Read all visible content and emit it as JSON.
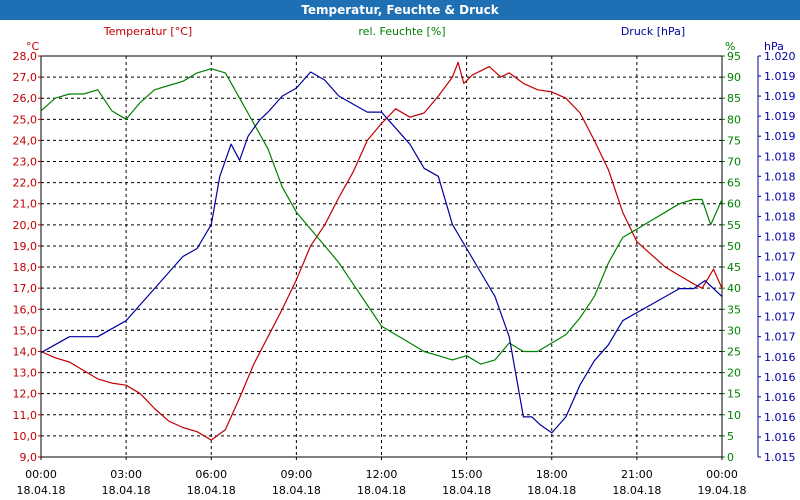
{
  "title": "Temperatur, Feuchte & Druck",
  "colors": {
    "title_bg": "#1f6fb5",
    "temperature": "#c00000",
    "humidity": "#008000",
    "pressure": "#0000a0",
    "grid": "#000000"
  },
  "chart_data": {
    "type": "line",
    "grid": true,
    "x_ticks": [
      {
        "time": "00:00",
        "date": "18.04.18"
      },
      {
        "time": "03:00",
        "date": "18.04.18"
      },
      {
        "time": "06:00",
        "date": "18.04.18"
      },
      {
        "time": "09:00",
        "date": "18.04.18"
      },
      {
        "time": "12:00",
        "date": "18.04.18"
      },
      {
        "time": "15:00",
        "date": "18.04.18"
      },
      {
        "time": "18:00",
        "date": "18.04.18"
      },
      {
        "time": "21:00",
        "date": "18.04.18"
      },
      {
        "time": "00:00",
        "date": "19.04.18"
      }
    ],
    "x_unit_hours": [
      0,
      24
    ],
    "axes": {
      "temperature": {
        "label": "Temperatur [°C]",
        "unit": "°C",
        "ylim": [
          9.0,
          28.0
        ],
        "ticks": [
          "9,0",
          "10,0",
          "11,0",
          "12,0",
          "13,0",
          "14,0",
          "15,0",
          "16,0",
          "17,0",
          "18,0",
          "19,0",
          "20,0",
          "21,0",
          "22,0",
          "23,0",
          "24,0",
          "25,0",
          "26,0",
          "27,0",
          "28,0"
        ]
      },
      "humidity": {
        "label": "rel. Feuchte [%]",
        "unit": "%",
        "ylim": [
          0,
          95
        ],
        "ticks": [
          "0",
          "5",
          "10",
          "15",
          "20",
          "25",
          "30",
          "35",
          "40",
          "45",
          "50",
          "55",
          "60",
          "65",
          "70",
          "75",
          "80",
          "85",
          "90",
          "95"
        ]
      },
      "pressure": {
        "label": "Druck [hPa]",
        "unit": "hPa",
        "ylim": [
          1015.0,
          1020.0
        ],
        "ticks": [
          "1.015",
          "1.016",
          "1.016",
          "1.016",
          "1.016",
          "1.016",
          "1.017",
          "1.017",
          "1.017",
          "1.017",
          "1.017",
          "1.018",
          "1.018",
          "1.018",
          "1.018",
          "1.018",
          "1.019",
          "1.019",
          "1.019",
          "1.019",
          "1.020"
        ]
      }
    },
    "series": [
      {
        "name": "Temperatur [°C]",
        "axis": "temperature",
        "points": [
          [
            0,
            14.0
          ],
          [
            0.5,
            13.7
          ],
          [
            1,
            13.5
          ],
          [
            1.5,
            13.1
          ],
          [
            2,
            12.7
          ],
          [
            2.5,
            12.5
          ],
          [
            3,
            12.4
          ],
          [
            3.5,
            12.0
          ],
          [
            4,
            11.3
          ],
          [
            4.5,
            10.7
          ],
          [
            5,
            10.4
          ],
          [
            5.5,
            10.2
          ],
          [
            6,
            9.8
          ],
          [
            6.5,
            10.3
          ],
          [
            7,
            11.8
          ],
          [
            7.5,
            13.4
          ],
          [
            8,
            14.7
          ],
          [
            8.5,
            16.0
          ],
          [
            9,
            17.4
          ],
          [
            9.5,
            19.0
          ],
          [
            10,
            20.0
          ],
          [
            10.5,
            21.3
          ],
          [
            11,
            22.5
          ],
          [
            11.5,
            24.0
          ],
          [
            12,
            24.8
          ],
          [
            12.5,
            25.5
          ],
          [
            13,
            25.1
          ],
          [
            13.5,
            25.3
          ],
          [
            14,
            26.1
          ],
          [
            14.5,
            27.0
          ],
          [
            14.7,
            27.7
          ],
          [
            14.9,
            26.7
          ],
          [
            15.2,
            27.1
          ],
          [
            15.5,
            27.3
          ],
          [
            15.8,
            27.5
          ],
          [
            16.2,
            27.0
          ],
          [
            16.5,
            27.2
          ],
          [
            17,
            26.7
          ],
          [
            17.5,
            26.4
          ],
          [
            18,
            26.3
          ],
          [
            18.5,
            26.0
          ],
          [
            19,
            25.3
          ],
          [
            19.5,
            24.0
          ],
          [
            20,
            22.6
          ],
          [
            20.5,
            20.6
          ],
          [
            21,
            19.2
          ],
          [
            21.5,
            18.6
          ],
          [
            22,
            18.0
          ],
          [
            22.5,
            17.6
          ],
          [
            23,
            17.2
          ],
          [
            23.3,
            17.0
          ],
          [
            23.7,
            17.9
          ],
          [
            24,
            17.0
          ]
        ]
      },
      {
        "name": "rel. Feuchte [%]",
        "axis": "humidity",
        "points": [
          [
            0,
            82
          ],
          [
            0.5,
            85
          ],
          [
            1,
            86
          ],
          [
            1.5,
            86
          ],
          [
            2,
            87
          ],
          [
            2.5,
            82
          ],
          [
            3,
            80
          ],
          [
            3.5,
            84
          ],
          [
            4,
            87
          ],
          [
            4.5,
            88
          ],
          [
            5,
            89
          ],
          [
            5.5,
            91
          ],
          [
            6,
            92
          ],
          [
            6.5,
            91
          ],
          [
            7,
            85
          ],
          [
            7.5,
            79
          ],
          [
            8,
            73
          ],
          [
            8.5,
            64
          ],
          [
            9,
            58
          ],
          [
            9.5,
            54
          ],
          [
            10,
            50
          ],
          [
            10.5,
            46
          ],
          [
            11,
            41
          ],
          [
            11.5,
            36
          ],
          [
            12,
            31
          ],
          [
            12.5,
            29
          ],
          [
            13,
            27
          ],
          [
            13.5,
            25
          ],
          [
            14,
            24
          ],
          [
            14.5,
            23
          ],
          [
            15,
            24
          ],
          [
            15.5,
            22
          ],
          [
            16,
            23
          ],
          [
            16.5,
            27
          ],
          [
            17,
            25
          ],
          [
            17.5,
            25
          ],
          [
            18,
            27
          ],
          [
            18.5,
            29
          ],
          [
            19,
            33
          ],
          [
            19.5,
            38
          ],
          [
            20,
            46
          ],
          [
            20.5,
            52
          ],
          [
            21,
            54
          ],
          [
            21.5,
            56
          ],
          [
            22,
            58
          ],
          [
            22.5,
            60
          ],
          [
            23,
            61
          ],
          [
            23.3,
            61
          ],
          [
            23.6,
            55
          ],
          [
            24,
            61
          ]
        ]
      },
      {
        "name": "Druck [hPa]",
        "axis": "pressure",
        "points": [
          [
            0,
            1016.3
          ],
          [
            0.5,
            1016.4
          ],
          [
            1,
            1016.5
          ],
          [
            1.5,
            1016.5
          ],
          [
            2,
            1016.5
          ],
          [
            2.5,
            1016.6
          ],
          [
            3,
            1016.7
          ],
          [
            3.5,
            1016.9
          ],
          [
            4,
            1017.1
          ],
          [
            4.5,
            1017.3
          ],
          [
            5,
            1017.5
          ],
          [
            5.5,
            1017.6
          ],
          [
            6,
            1017.9
          ],
          [
            6.3,
            1018.5
          ],
          [
            6.7,
            1018.9
          ],
          [
            7,
            1018.7
          ],
          [
            7.3,
            1019.0
          ],
          [
            7.7,
            1019.2
          ],
          [
            8,
            1019.3
          ],
          [
            8.5,
            1019.5
          ],
          [
            9,
            1019.6
          ],
          [
            9.5,
            1019.8
          ],
          [
            10,
            1019.7
          ],
          [
            10.5,
            1019.5
          ],
          [
            11,
            1019.4
          ],
          [
            11.5,
            1019.3
          ],
          [
            12,
            1019.3
          ],
          [
            12.5,
            1019.1
          ],
          [
            13,
            1018.9
          ],
          [
            13.5,
            1018.6
          ],
          [
            14,
            1018.5
          ],
          [
            14.5,
            1017.9
          ],
          [
            15,
            1017.6
          ],
          [
            15.5,
            1017.3
          ],
          [
            16,
            1017.0
          ],
          [
            16.5,
            1016.5
          ],
          [
            17,
            1015.5
          ],
          [
            17.3,
            1015.5
          ],
          [
            17.6,
            1015.4
          ],
          [
            18,
            1015.3
          ],
          [
            18.5,
            1015.5
          ],
          [
            19,
            1015.9
          ],
          [
            19.5,
            1016.2
          ],
          [
            20,
            1016.4
          ],
          [
            20.5,
            1016.7
          ],
          [
            21,
            1016.8
          ],
          [
            21.5,
            1016.9
          ],
          [
            22,
            1017.0
          ],
          [
            22.5,
            1017.1
          ],
          [
            23,
            1017.1
          ],
          [
            23.4,
            1017.2
          ],
          [
            23.7,
            1017.1
          ],
          [
            24,
            1017.0
          ]
        ]
      }
    ]
  }
}
